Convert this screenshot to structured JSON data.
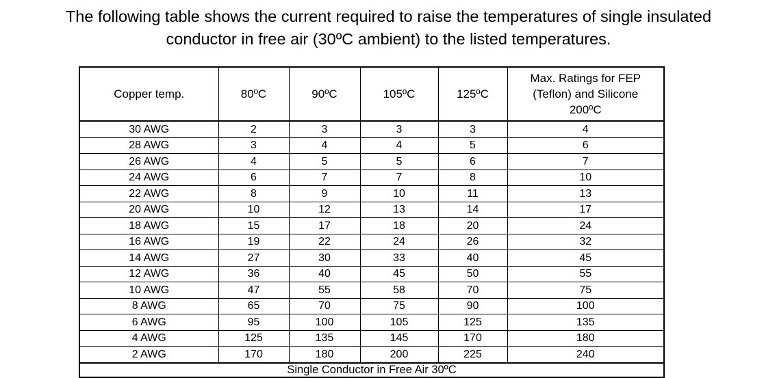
{
  "intro": {
    "line1": "The following table shows the current required to raise the temperatures of single insulated",
    "line2": "conductor in free air (30ºC ambient) to the listed temperatures."
  },
  "table": {
    "headers": [
      "Copper temp.",
      "80ºC",
      "90ºC",
      "105ºC",
      "125ºC",
      "Max. Ratings for FEP (Teflon) and Silicone 200ºC"
    ],
    "rows": [
      [
        "30 AWG",
        "2",
        "3",
        "3",
        "3",
        "4"
      ],
      [
        "28 AWG",
        "3",
        "4",
        "4",
        "5",
        "6"
      ],
      [
        "26 AWG",
        "4",
        "5",
        "5",
        "6",
        "7"
      ],
      [
        "24 AWG",
        "6",
        "7",
        "7",
        "8",
        "10"
      ],
      [
        "22 AWG",
        "8",
        "9",
        "10",
        "11",
        "13"
      ],
      [
        "20 AWG",
        "10",
        "12",
        "13",
        "14",
        "17"
      ],
      [
        "18 AWG",
        "15",
        "17",
        "18",
        "20",
        "24"
      ],
      [
        "16 AWG",
        "19",
        "22",
        "24",
        "26",
        "32"
      ],
      [
        "14 AWG",
        "27",
        "30",
        "33",
        "40",
        "45"
      ],
      [
        "12 AWG",
        "36",
        "40",
        "45",
        "50",
        "55"
      ],
      [
        "10 AWG",
        "47",
        "55",
        "58",
        "70",
        "75"
      ],
      [
        "8 AWG",
        "65",
        "70",
        "75",
        "90",
        "100"
      ],
      [
        "6 AWG",
        "95",
        "100",
        "105",
        "125",
        "135"
      ],
      [
        "4 AWG",
        "125",
        "135",
        "145",
        "170",
        "180"
      ],
      [
        "2 AWG",
        "170",
        "180",
        "200",
        "225",
        "240"
      ]
    ],
    "footer": "Single Conductor in Free Air 30ºC"
  }
}
